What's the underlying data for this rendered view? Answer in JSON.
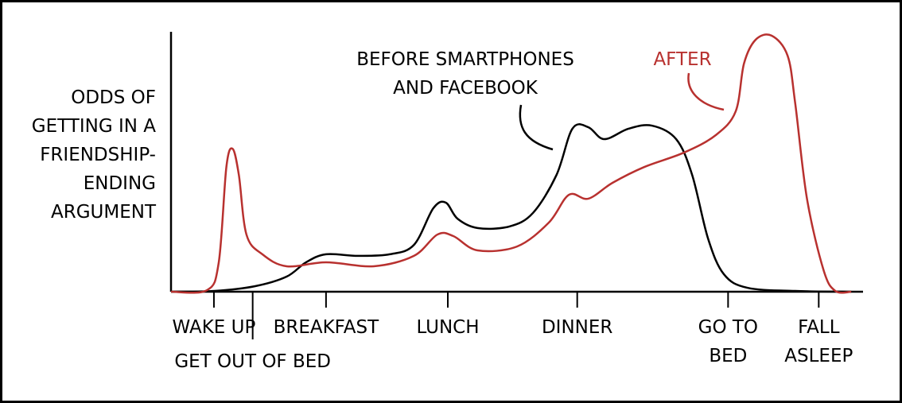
{
  "chart_data": {
    "type": "line",
    "y_label": "ODDS OF\nGETTING IN A\nFRIENDSHIP-\nENDING\nARGUMENT",
    "xlim": [
      0,
      100
    ],
    "ylim": [
      0,
      100
    ],
    "xticks": [
      {
        "value": 6.2,
        "label": "WAKE UP"
      },
      {
        "value": 11.8,
        "label": "GET OUT OF BED"
      },
      {
        "value": 22.4,
        "label": "BREAKFAST"
      },
      {
        "value": 40,
        "label": "LUNCH"
      },
      {
        "value": 58.7,
        "label": "DINNER"
      },
      {
        "value": 80.5,
        "label": "GO TO\nBED"
      },
      {
        "value": 93.6,
        "label": "FALL\nASLEEP"
      }
    ],
    "series": [
      {
        "name": "BEFORE SMARTPHONES\nAND FACEBOOK",
        "color": "#000000",
        "x": [
          0,
          6.3,
          12.1,
          16.7,
          19.5,
          22.4,
          27.0,
          31.6,
          35.1,
          37.9,
          39.7,
          41.4,
          44.3,
          48.9,
          52.3,
          55.7,
          58.0,
          60.3,
          62.6,
          66.1,
          69.5,
          73.0,
          75.3,
          77.6,
          79.9,
          83.3,
          90.2,
          98.3
        ],
        "values": [
          0,
          0.3,
          2.1,
          5.8,
          11.3,
          14.4,
          13.8,
          14.4,
          18.0,
          32.1,
          34.3,
          28.1,
          24.5,
          25.1,
          30.3,
          44.9,
          62.7,
          63.3,
          58.7,
          62.7,
          63.9,
          58.7,
          45.0,
          20.5,
          6.7,
          1.5,
          0.3,
          0
        ]
      },
      {
        "name": "AFTER",
        "color": "#b8312f",
        "x": [
          0,
          5.2,
          6.9,
          8.0,
          8.9,
          9.8,
          10.9,
          13.2,
          16.7,
          22.4,
          29.3,
          35.1,
          38.5,
          40.8,
          44.3,
          50.0,
          54.6,
          57.5,
          60.3,
          63.8,
          68.4,
          74.1,
          78.7,
          81.6,
          82.8,
          84.5,
          86.8,
          89.1,
          90.2,
          91.9,
          94.3,
          96.0,
          98.3
        ],
        "values": [
          0,
          0.6,
          11.3,
          48.0,
          55.0,
          45.0,
          22.0,
          14.4,
          9.8,
          11.3,
          9.8,
          13.8,
          22.0,
          21.4,
          15.9,
          17.4,
          26.6,
          37.3,
          35.8,
          41.9,
          48.0,
          53.5,
          60.2,
          69.4,
          87.8,
          97.0,
          98.5,
          90.8,
          72.5,
          35.8,
          8.3,
          0.3,
          0
        ]
      }
    ]
  }
}
